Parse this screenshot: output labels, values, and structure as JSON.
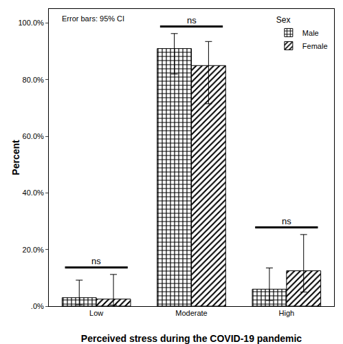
{
  "chart_data": {
    "type": "bar",
    "xlabel": "Perceived stress during the COVID-19 pandemic",
    "ylabel": "Percent",
    "categories": [
      "Low",
      "Moderate",
      "High"
    ],
    "series": [
      {
        "name": "Male",
        "color": "#000000",
        "marker": "checkered",
        "values": [
          3.0,
          91.0,
          6.0
        ],
        "ci_lower": [
          0.5,
          82.0,
          2.0
        ],
        "ci_upper": [
          9.2,
          96.3,
          13.5
        ]
      },
      {
        "name": "Female",
        "color": "#000000",
        "marker": "hatched",
        "values": [
          2.5,
          85.0,
          12.5
        ],
        "ci_lower": [
          0.4,
          71.5,
          5.0
        ],
        "ci_upper": [
          11.2,
          93.5,
          25.3
        ]
      }
    ],
    "ylim": [
      0,
      105
    ],
    "yticks": [
      {
        "value": 0,
        "label": ".0%"
      },
      {
        "value": 20,
        "label": "20.0%"
      },
      {
        "value": 40,
        "label": "40.0%"
      },
      {
        "value": 60,
        "label": "60.0%"
      },
      {
        "value": 80,
        "label": "80.0%"
      },
      {
        "value": 100,
        "label": "100.0%"
      }
    ],
    "grid": false,
    "legend": "top right",
    "legend_title": "Sex",
    "note": "Error bars: 95% CI",
    "annotations": [
      {
        "category": "Low",
        "text": "ns"
      },
      {
        "category": "Moderate",
        "text": "ns"
      },
      {
        "category": "High",
        "text": "ns"
      }
    ]
  }
}
